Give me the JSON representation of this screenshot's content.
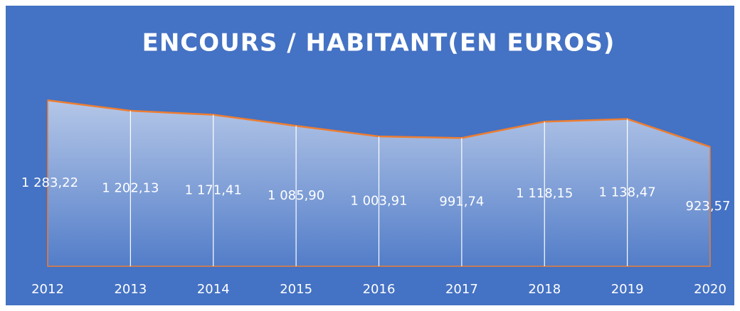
{
  "chart_data": {
    "type": "area",
    "title": "ENCOURS / HABITANT(EN  EUROS)",
    "categories": [
      "2012",
      "2013",
      "2014",
      "2015",
      "2016",
      "2017",
      "2018",
      "2019",
      "2020"
    ],
    "values": [
      1283.22,
      1202.13,
      1171.41,
      1085.9,
      1003.91,
      991.74,
      1118.15,
      1138.47,
      923.57
    ],
    "value_labels": [
      "1 283,22",
      "1 202,13",
      "1 171,41",
      "1 085,90",
      "1 003,91",
      "991,74",
      "1 118,15",
      "1 138,47",
      "923,57"
    ],
    "color": "#ed7d31",
    "ylim": [
      0,
      1400
    ]
  }
}
